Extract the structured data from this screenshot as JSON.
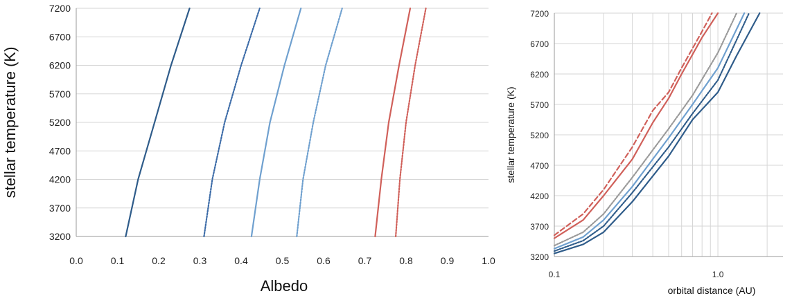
{
  "chart_data": [
    {
      "type": "line",
      "xlabel": "Albedo",
      "ylabel": "stellar temperature (K)",
      "xlim": [
        0.0,
        1.0
      ],
      "ylim": [
        3200,
        7200
      ],
      "x_ticks": [
        "0.0",
        "0.1",
        "0.2",
        "0.3",
        "0.4",
        "0.5",
        "0.6",
        "0.7",
        "0.8",
        "0.9",
        "1.0"
      ],
      "y_ticks": [
        "3200",
        "3700",
        "4200",
        "4700",
        "5200",
        "5700",
        "6200",
        "6700",
        "7200"
      ],
      "grid": "horizontal",
      "series": [
        {
          "color": "#2f5c8a",
          "style": "solid",
          "points": [
            [
              0.12,
              3200
            ],
            [
              0.15,
              4200
            ],
            [
              0.19,
              5200
            ],
            [
              0.23,
              6200
            ],
            [
              0.275,
              7200
            ]
          ]
        },
        {
          "color": "#3d6ca8",
          "style": "dotted",
          "points": [
            [
              0.31,
              3200
            ],
            [
              0.33,
              4200
            ],
            [
              0.36,
              5200
            ],
            [
              0.4,
              6200
            ],
            [
              0.445,
              7200
            ]
          ]
        },
        {
          "color": "#6fa0cf",
          "style": "solid",
          "points": [
            [
              0.425,
              3200
            ],
            [
              0.445,
              4200
            ],
            [
              0.47,
              5200
            ],
            [
              0.505,
              6200
            ],
            [
              0.545,
              7200
            ]
          ]
        },
        {
          "color": "#6fa0cf",
          "style": "dotted",
          "points": [
            [
              0.535,
              3200
            ],
            [
              0.55,
              4200
            ],
            [
              0.575,
              5200
            ],
            [
              0.605,
              6200
            ],
            [
              0.645,
              7200
            ]
          ]
        },
        {
          "color": "#d0605a",
          "style": "solid",
          "points": [
            [
              0.725,
              3200
            ],
            [
              0.74,
              4200
            ],
            [
              0.758,
              5200
            ],
            [
              0.783,
              6200
            ],
            [
              0.81,
              7200
            ]
          ]
        },
        {
          "color": "#d0605a",
          "style": "dotted",
          "points": [
            [
              0.775,
              3200
            ],
            [
              0.785,
              4200
            ],
            [
              0.8,
              5200
            ],
            [
              0.822,
              6200
            ],
            [
              0.848,
              7200
            ]
          ]
        }
      ]
    },
    {
      "type": "line",
      "xlabel": "orbital distance (AU)",
      "ylabel": "stellar temperature (K)",
      "xscale": "log",
      "xlim": [
        0.1,
        2.5
      ],
      "ylim": [
        3200,
        7200
      ],
      "x_ticks": [
        "0.1",
        "1.0"
      ],
      "y_ticks": [
        "3200",
        "3700",
        "4200",
        "4700",
        "5200",
        "5700",
        "6200",
        "6700",
        "7200"
      ],
      "grid": "both",
      "series": [
        {
          "color": "#d0605a",
          "style": "dashed",
          "points": [
            [
              0.1,
              3550
            ],
            [
              0.15,
              3900
            ],
            [
              0.2,
              4300
            ],
            [
              0.3,
              5000
            ],
            [
              0.4,
              5600
            ],
            [
              0.5,
              5900
            ],
            [
              0.6,
              6300
            ],
            [
              0.8,
              6900
            ],
            [
              0.92,
              7200
            ]
          ]
        },
        {
          "color": "#d0605a",
          "style": "solid",
          "points": [
            [
              0.1,
              3500
            ],
            [
              0.15,
              3800
            ],
            [
              0.2,
              4200
            ],
            [
              0.3,
              4800
            ],
            [
              0.4,
              5400
            ],
            [
              0.5,
              5800
            ],
            [
              0.6,
              6200
            ],
            [
              0.8,
              6800
            ],
            [
              1.0,
              7200
            ]
          ]
        },
        {
          "color": "#9a9a9a",
          "style": "dotted",
          "points": [
            [
              0.1,
              3380
            ],
            [
              0.15,
              3600
            ],
            [
              0.2,
              3900
            ],
            [
              0.3,
              4500
            ],
            [
              0.5,
              5300
            ],
            [
              0.7,
              5850
            ],
            [
              1.0,
              6550
            ],
            [
              1.3,
              7200
            ]
          ]
        },
        {
          "color": "#6fa0cf",
          "style": "solid",
          "points": [
            [
              0.1,
              3330
            ],
            [
              0.15,
              3520
            ],
            [
              0.2,
              3800
            ],
            [
              0.3,
              4350
            ],
            [
              0.5,
              5150
            ],
            [
              0.7,
              5700
            ],
            [
              1.0,
              6300
            ],
            [
              1.45,
              7200
            ]
          ]
        },
        {
          "color": "#2f5c8a",
          "style": "dotted",
          "points": [
            [
              0.1,
              3290
            ],
            [
              0.15,
              3460
            ],
            [
              0.2,
              3700
            ],
            [
              0.3,
              4250
            ],
            [
              0.5,
              5000
            ],
            [
              0.7,
              5550
            ],
            [
              1.0,
              6100
            ],
            [
              1.55,
              7200
            ]
          ]
        },
        {
          "color": "#2f5c8a",
          "style": "solid",
          "points": [
            [
              0.1,
              3250
            ],
            [
              0.15,
              3400
            ],
            [
              0.2,
              3600
            ],
            [
              0.3,
              4100
            ],
            [
              0.5,
              4850
            ],
            [
              0.7,
              5450
            ],
            [
              1.0,
              5900
            ],
            [
              1.3,
              6500
            ],
            [
              1.8,
              7200
            ]
          ]
        }
      ]
    }
  ]
}
